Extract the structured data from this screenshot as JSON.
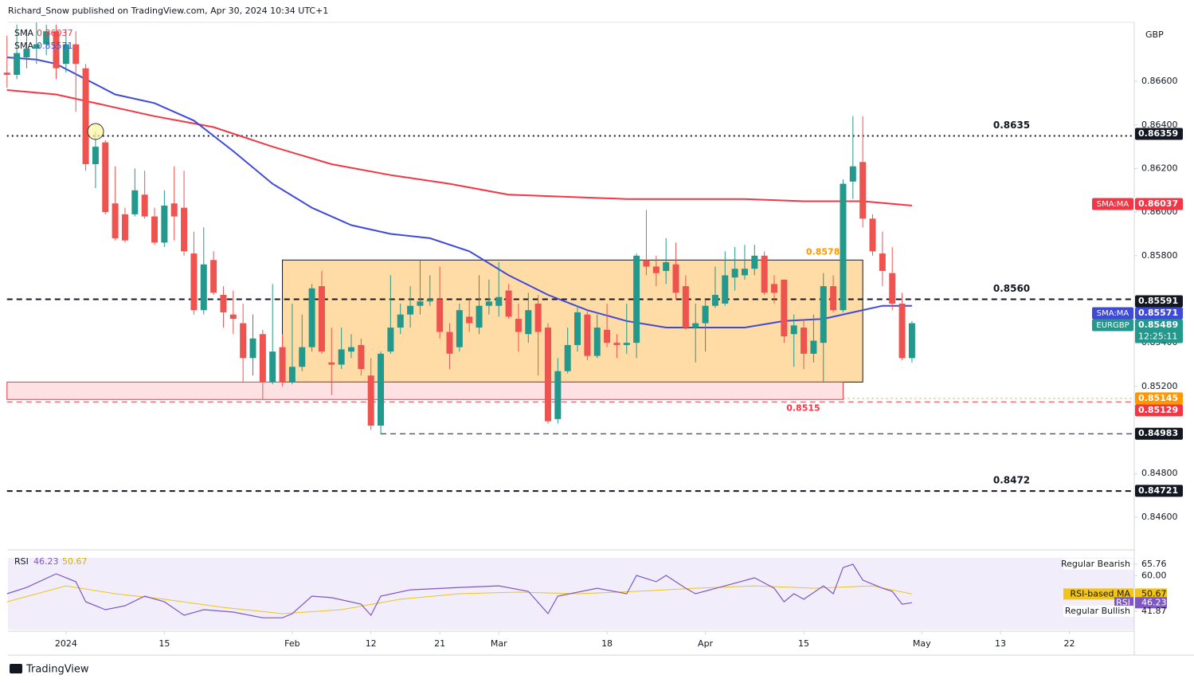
{
  "header": {
    "publisher": "Richard_Snow published on TradingView.com, Apr 30, 2024 10:34 UTC+1",
    "brand": "TradingView"
  },
  "chart_data": {
    "type": "candlestick",
    "currency": "GBP",
    "x": [
      -6,
      -5,
      -4,
      -3,
      -2,
      -1,
      0,
      1,
      2,
      3,
      4,
      5,
      6,
      7,
      8,
      9,
      10,
      11,
      12,
      13,
      14,
      15,
      16,
      17,
      18,
      19,
      20,
      21,
      22,
      23,
      24,
      25,
      26,
      27,
      28,
      29,
      30,
      31,
      32,
      33,
      34,
      35,
      36,
      37,
      38,
      39,
      40,
      41,
      42,
      43,
      44,
      45,
      46,
      47,
      48,
      49,
      50,
      51,
      52,
      53,
      54,
      55,
      56,
      57,
      58,
      59,
      60,
      61,
      62,
      63,
      64,
      65,
      66,
      67,
      68,
      69,
      70,
      71,
      72,
      73,
      74,
      75,
      76,
      77,
      78,
      79,
      80,
      81,
      82,
      83,
      84,
      85,
      86
    ],
    "open": [
      0.8664,
      0.8663,
      0.8671,
      0.8675,
      0.8677,
      0.8683,
      0.8668,
      0.8677,
      0.8666,
      0.8622,
      0.8632,
      0.8604,
      0.8599,
      0.8599,
      0.8608,
      0.8598,
      0.8586,
      0.8604,
      0.8602,
      0.8581,
      0.8555,
      0.8578,
      0.8562,
      0.8553,
      0.8549,
      0.8533,
      0.8544,
      0.8522,
      0.8538,
      0.8522,
      0.8529,
      0.8538,
      0.8566,
      0.8531,
      0.853,
      0.8536,
      0.8539,
      0.8525,
      0.8502,
      0.8536,
      0.8547,
      0.8553,
      0.8557,
      0.8559,
      0.856,
      0.8545,
      0.8538,
      0.8552,
      0.8547,
      0.8557,
      0.8557,
      0.8564,
      0.8551,
      0.8544,
      0.8558,
      0.8547,
      0.8505,
      0.8527,
      0.8539,
      0.8553,
      0.8534,
      0.8546,
      0.854,
      0.8539,
      0.854,
      0.8578,
      0.8575,
      0.8573,
      0.8576,
      0.8566,
      0.8547,
      0.8549,
      0.8557,
      0.8558,
      0.857,
      0.8571,
      0.8574,
      0.858,
      0.8567,
      0.8569,
      0.8544,
      0.8547,
      0.8535,
      0.854,
      0.8566,
      0.8555,
      0.8614,
      0.8623,
      0.8597,
      0.8581,
      0.8572,
      0.8558,
      0.8533
    ],
    "high": [
      0.8681,
      0.8686,
      0.8684,
      0.8687,
      0.8686,
      0.8686,
      0.8684,
      0.8683,
      0.8668,
      0.8637,
      0.8633,
      0.8621,
      0.8602,
      0.862,
      0.8619,
      0.8602,
      0.861,
      0.8621,
      0.8619,
      0.8591,
      0.8593,
      0.8582,
      0.8566,
      0.8564,
      0.8558,
      0.8553,
      0.8546,
      0.8567,
      0.8544,
      0.8558,
      0.8553,
      0.8567,
      0.8573,
      0.8547,
      0.8547,
      0.8544,
      0.8542,
      0.8533,
      0.8536,
      0.8571,
      0.8558,
      0.8566,
      0.8578,
      0.8571,
      0.8575,
      0.8549,
      0.8558,
      0.856,
      0.8571,
      0.8569,
      0.8577,
      0.8567,
      0.8558,
      0.8563,
      0.8562,
      0.8549,
      0.8533,
      0.8547,
      0.8557,
      0.8555,
      0.8553,
      0.8558,
      0.8544,
      0.8558,
      0.8581,
      0.8601,
      0.858,
      0.8588,
      0.8586,
      0.8571,
      0.8558,
      0.856,
      0.8575,
      0.8582,
      0.8584,
      0.8585,
      0.8585,
      0.8582,
      0.8571,
      0.8569,
      0.8553,
      0.8551,
      0.8553,
      0.8572,
      0.8571,
      0.8615,
      0.8644,
      0.8644,
      0.8599,
      0.8591,
      0.8584,
      0.8563,
      0.855
    ],
    "low": [
      0.8657,
      0.8661,
      0.8666,
      0.8668,
      0.8672,
      0.8661,
      0.8664,
      0.8646,
      0.8619,
      0.8611,
      0.8599,
      0.8587,
      0.8586,
      0.8598,
      0.8597,
      0.8585,
      0.8584,
      0.8587,
      0.858,
      0.8553,
      0.8553,
      0.8562,
      0.8547,
      0.8544,
      0.8522,
      0.8525,
      0.8514,
      0.8521,
      0.852,
      0.8521,
      0.8527,
      0.8536,
      0.8535,
      0.8516,
      0.8528,
      0.8533,
      0.8525,
      0.85,
      0.8498,
      0.8535,
      0.8544,
      0.8547,
      0.8553,
      0.8557,
      0.8542,
      0.8528,
      0.8536,
      0.8545,
      0.8544,
      0.8553,
      0.8552,
      0.8551,
      0.8536,
      0.854,
      0.8525,
      0.8503,
      0.8503,
      0.8526,
      0.8536,
      0.8532,
      0.8533,
      0.8538,
      0.8533,
      0.8535,
      0.8533,
      0.8571,
      0.8566,
      0.8567,
      0.856,
      0.8546,
      0.8531,
      0.8536,
      0.8556,
      0.8557,
      0.8564,
      0.8569,
      0.8571,
      0.8562,
      0.8558,
      0.854,
      0.8529,
      0.8528,
      0.8531,
      0.8522,
      0.8554,
      0.8554,
      0.8606,
      0.8593,
      0.858,
      0.8566,
      0.8555,
      0.8532,
      0.8531
    ],
    "close": [
      0.8663,
      0.8673,
      0.8675,
      0.8677,
      0.8683,
      0.8666,
      0.8677,
      0.8668,
      0.8622,
      0.863,
      0.86,
      0.8588,
      0.8587,
      0.861,
      0.8598,
      0.8586,
      0.8603,
      0.8598,
      0.8582,
      0.8555,
      0.8576,
      0.8563,
      0.8554,
      0.8551,
      0.8533,
      0.8542,
      0.8522,
      0.8536,
      0.8522,
      0.8529,
      0.8538,
      0.8565,
      0.8536,
      0.853,
      0.8537,
      0.8538,
      0.8528,
      0.8502,
      0.8535,
      0.8547,
      0.8553,
      0.8557,
      0.8559,
      0.856,
      0.8545,
      0.8535,
      0.8555,
      0.8549,
      0.8557,
      0.8559,
      0.8561,
      0.8552,
      0.8545,
      0.8555,
      0.8545,
      0.8504,
      0.8527,
      0.8539,
      0.8554,
      0.8534,
      0.8547,
      0.854,
      0.8539,
      0.854,
      0.858,
      0.8575,
      0.8572,
      0.8577,
      0.8563,
      0.8547,
      0.8549,
      0.8557,
      0.8562,
      0.8571,
      0.8574,
      0.8574,
      0.858,
      0.8563,
      0.8563,
      0.8543,
      0.8548,
      0.8535,
      0.8541,
      0.8566,
      0.8555,
      0.8613,
      0.8621,
      0.8597,
      0.8582,
      0.8573,
      0.8558,
      0.8533,
      0.8549
    ],
    "up_color": "#22998c",
    "down_color": "#ef5350",
    "xlim": [
      -5.9,
      108.6
    ],
    "ylim": [
      0.84457,
      0.86871
    ],
    "xticks": [
      {
        "value": 0,
        "label": "2024"
      },
      {
        "value": 10,
        "label": "15"
      },
      {
        "value": 23,
        "label": "Feb"
      },
      {
        "value": 31,
        "label": "12"
      },
      {
        "value": 38,
        "label": "21"
      },
      {
        "value": 44,
        "label": "Mar"
      },
      {
        "value": 55,
        "label": "18"
      },
      {
        "value": 65,
        "label": "Apr"
      },
      {
        "value": 75,
        "label": "15"
      },
      {
        "value": 87,
        "label": "May"
      },
      {
        "value": 95,
        "label": "13"
      },
      {
        "value": 102,
        "label": "22"
      }
    ],
    "yticks": [
      {
        "value": 0.866,
        "label": "0.86600"
      },
      {
        "value": 0.864,
        "label": "0.86400"
      },
      {
        "value": 0.862,
        "label": "0.86200"
      },
      {
        "value": 0.86,
        "label": "0.86000"
      },
      {
        "value": 0.858,
        "label": "0.85800"
      },
      {
        "value": 0.854,
        "label": "0.85400"
      },
      {
        "value": 0.852,
        "label": "0.85200"
      },
      {
        "value": 0.848,
        "label": "0.84800"
      },
      {
        "value": 0.846,
        "label": "0.84600"
      }
    ],
    "overlays": [
      {
        "name": "SMA",
        "color": "#f23645",
        "x": [
          -6,
          -1,
          3,
          9,
          15,
          21,
          27,
          33,
          39,
          45,
          51,
          57,
          63,
          69,
          75,
          81,
          86
        ],
        "values": [
          0.8656,
          0.8654,
          0.865,
          0.8644,
          0.8639,
          0.863,
          0.8622,
          0.8617,
          0.8613,
          0.8608,
          0.8607,
          0.8606,
          0.8606,
          0.8606,
          0.8605,
          0.8605,
          0.8603
        ]
      },
      {
        "name": "SMA",
        "color": "#3f4bd4",
        "x": [
          -6,
          -3,
          -1,
          2,
          5,
          9,
          13,
          17,
          21,
          25,
          29,
          33,
          37,
          41,
          45,
          49,
          53,
          57,
          61,
          65,
          69,
          73,
          77,
          80,
          83,
          86
        ],
        "values": [
          0.8671,
          0.867,
          0.8668,
          0.8661,
          0.8654,
          0.865,
          0.8642,
          0.8628,
          0.8613,
          0.8602,
          0.8594,
          0.859,
          0.8588,
          0.8582,
          0.8571,
          0.8562,
          0.8555,
          0.855,
          0.8547,
          0.8547,
          0.8547,
          0.855,
          0.8551,
          0.8554,
          0.8557,
          0.8557
        ]
      }
    ],
    "levels": [
      {
        "value": 0.8635,
        "label": "0.8635",
        "style": "dotted",
        "color": "#131722",
        "from": -6
      },
      {
        "value": 0.856,
        "label": "0.8560",
        "style": "dashed",
        "color": "#131722",
        "from": -6
      },
      {
        "value": 0.8472,
        "label": "0.8472",
        "style": "dashed",
        "color": "#131722",
        "from": -6
      },
      {
        "value": 0.84983,
        "style": "dashed",
        "color": "#131722",
        "from": 32
      },
      {
        "value": 0.85129,
        "style": "dashed",
        "color": "#f23645",
        "from": -6
      },
      {
        "value": 0.85145,
        "style": "dotted",
        "color": "#ff9800",
        "from": 79
      }
    ],
    "boxes": [
      {
        "label": "0.8578",
        "from": 22,
        "to": 81,
        "range": [
          0.8522,
          0.8578
        ],
        "color": "#ff9800"
      },
      {
        "label": "0.8515",
        "from": -6,
        "to": 79,
        "range": [
          0.8514,
          0.8522
        ],
        "color": "#f23645"
      }
    ],
    "price_tags": [
      {
        "value": 0.86359,
        "color": "#131722"
      },
      {
        "name": "SMA:MA",
        "value": 0.86037,
        "color": "#f23645"
      },
      {
        "value": 0.85591,
        "color": "#131722"
      },
      {
        "name": "SMA:MA",
        "value": 0.85571,
        "color": "#3f4bd4"
      },
      {
        "name": "EURGBP",
        "value": 0.85489,
        "countdown": "12:25:11",
        "color": "#22998c"
      },
      {
        "value": 0.85145,
        "color": "#ff9800"
      },
      {
        "value": 0.85129,
        "color": "#f23645"
      },
      {
        "value": 0.84983,
        "color": "#131722"
      },
      {
        "value": 0.84721,
        "color": "#131722"
      }
    ],
    "rsi": {
      "name": "RSI",
      "color": "#7e57c2",
      "ylim": [
        32.6,
        69
      ],
      "x": [
        -6,
        -4,
        -1,
        1,
        2,
        4,
        6,
        8,
        10,
        12,
        14,
        17,
        20,
        22,
        23,
        25,
        27,
        30,
        31,
        32,
        35,
        40,
        44,
        47,
        49,
        50,
        54,
        57,
        58,
        60,
        61,
        63,
        64,
        67,
        70,
        72,
        73,
        74,
        75,
        77,
        78,
        79,
        80,
        81,
        83,
        84,
        85,
        86
      ],
      "values": [
        50.8,
        54,
        60.9,
        56.9,
        46.7,
        42.7,
        44.7,
        49.6,
        46.7,
        39.9,
        42.7,
        41.5,
        38.6,
        38.6,
        40.7,
        49.6,
        48.8,
        45.5,
        39.9,
        49.6,
        52.8,
        54,
        54.8,
        52,
        40.7,
        49.6,
        53.6,
        50.8,
        60.1,
        56.9,
        60.1,
        53.6,
        50.8,
        54.8,
        58.9,
        53.6,
        46.7,
        50.8,
        48,
        54.8,
        50.8,
        64.1,
        65.76,
        57.7,
        53.6,
        52,
        45.5,
        46.23
      ],
      "ma": {
        "name": "RSI-based MA",
        "color": "#f0c419",
        "x": [
          -6,
          0,
          5,
          10,
          16,
          22,
          28,
          34,
          40,
          46,
          52,
          58,
          64,
          70,
          76,
          82,
          86
        ],
        "values": [
          46.7,
          54.8,
          50.8,
          48,
          43.9,
          40.7,
          42.7,
          48,
          50.8,
          51.6,
          50.8,
          52,
          53.6,
          54.8,
          53.6,
          54.8,
          50.67
        ]
      },
      "tags": [
        {
          "name": "Regular Bearish",
          "value": 65.76
        },
        {
          "value": 60,
          "label": "60.00"
        },
        {
          "value": 50.67
        },
        {
          "value": 46.23
        },
        {
          "name": "Regular Bullish",
          "value": 41.87
        }
      ]
    }
  }
}
